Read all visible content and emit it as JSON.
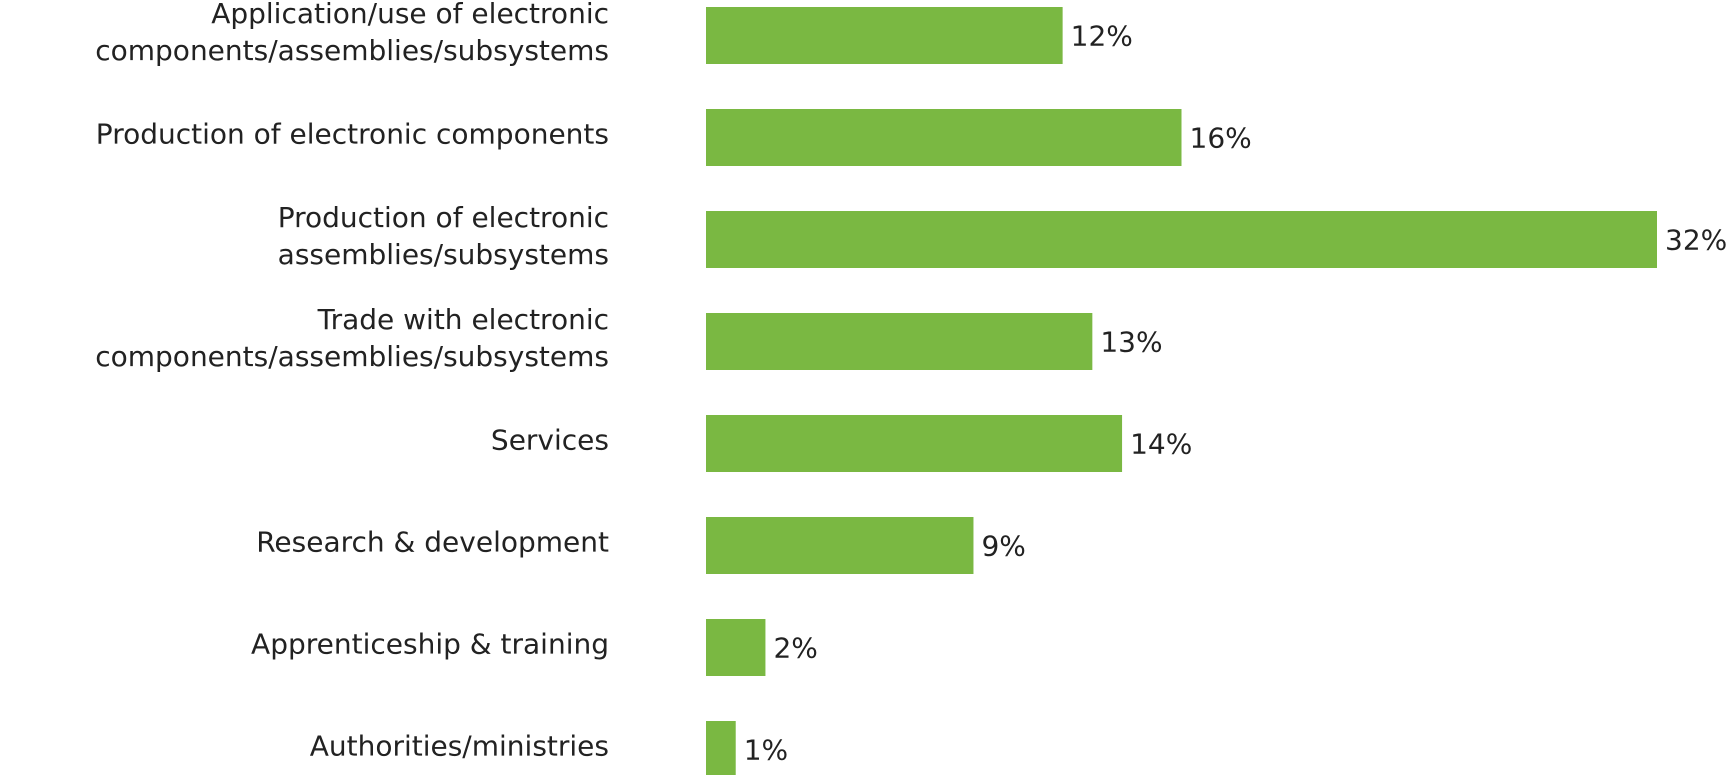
{
  "chart_data": {
    "type": "bar",
    "orientation": "horizontal",
    "categories": [
      [
        "Application/use of electronic",
        "components/assemblies/subsystems"
      ],
      [
        "Production of electronic components"
      ],
      [
        "Production of electronic",
        "assemblies/subsystems"
      ],
      [
        "Trade with electronic",
        "components/assemblies/subsystems"
      ],
      [
        "Services"
      ],
      [
        "Research & development"
      ],
      [
        "Apprenticeship & training"
      ],
      [
        "Authorities/ministries"
      ]
    ],
    "values": [
      12,
      16,
      32,
      13,
      14,
      9,
      2,
      1
    ],
    "value_labels": [
      "12%",
      "16%",
      "32%",
      "13%",
      "14%",
      "9%",
      "2%",
      "1%"
    ],
    "unit": "%",
    "xlim": [
      0,
      32
    ],
    "bar_color": "#7ab842",
    "grid": false,
    "legend": "none",
    "axes_visible": false
  }
}
